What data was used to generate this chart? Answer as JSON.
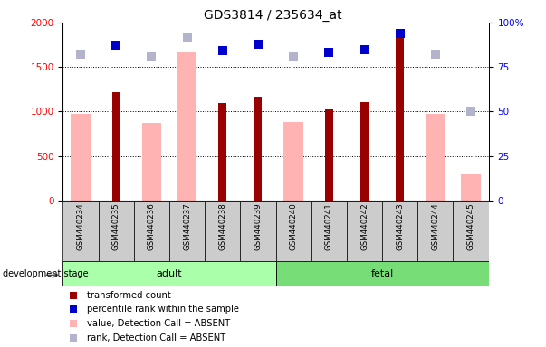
{
  "title": "GDS3814 / 235634_at",
  "samples": [
    "GSM440234",
    "GSM440235",
    "GSM440236",
    "GSM440237",
    "GSM440238",
    "GSM440239",
    "GSM440240",
    "GSM440241",
    "GSM440242",
    "GSM440243",
    "GSM440244",
    "GSM440245"
  ],
  "adult_count": 6,
  "fetal_count": 6,
  "transformed_count": [
    null,
    1220,
    null,
    null,
    1095,
    1165,
    null,
    1030,
    1110,
    1875,
    null,
    null
  ],
  "percentile_rank": [
    null,
    1750,
    null,
    null,
    1680,
    1755,
    null,
    1665,
    1695,
    1880,
    null,
    null
  ],
  "absent_value": [
    975,
    null,
    875,
    1670,
    null,
    null,
    885,
    null,
    null,
    null,
    975,
    295
  ],
  "absent_rank": [
    1640,
    null,
    1610,
    1840,
    null,
    null,
    1610,
    null,
    null,
    null,
    1640,
    null
  ],
  "absent_rank_solo": [
    null,
    null,
    null,
    null,
    null,
    null,
    null,
    null,
    null,
    null,
    null,
    1000
  ],
  "ylim_left": [
    0,
    2000
  ],
  "ylim_right": [
    0,
    100
  ],
  "yticks_left": [
    0,
    500,
    1000,
    1500,
    2000
  ],
  "yticks_right": [
    0,
    25,
    50,
    75,
    100
  ],
  "ytick_labels_left": [
    "0",
    "500",
    "1000",
    "1500",
    "2000"
  ],
  "ytick_labels_right": [
    "0",
    "25",
    "50",
    "75",
    "100%"
  ],
  "bar_color_dark_red": "#990000",
  "bar_color_blue": "#0000cc",
  "bar_color_pink": "#ffb3b3",
  "bar_color_light_blue": "#b3b3cc",
  "adult_bg": "#aaffaa",
  "fetal_bg": "#77dd77",
  "group_label_adult": "adult",
  "group_label_fetal": "fetal",
  "dev_stage_label": "development stage",
  "legend_items": [
    {
      "label": "transformed count",
      "color": "#990000"
    },
    {
      "label": "percentile rank within the sample",
      "color": "#0000cc"
    },
    {
      "label": "value, Detection Call = ABSENT",
      "color": "#ffb3b3"
    },
    {
      "label": "rank, Detection Call = ABSENT",
      "color": "#b3b3cc"
    }
  ],
  "dot_size": 55,
  "background_color": "#ffffff",
  "axis_bg": "#ffffff"
}
